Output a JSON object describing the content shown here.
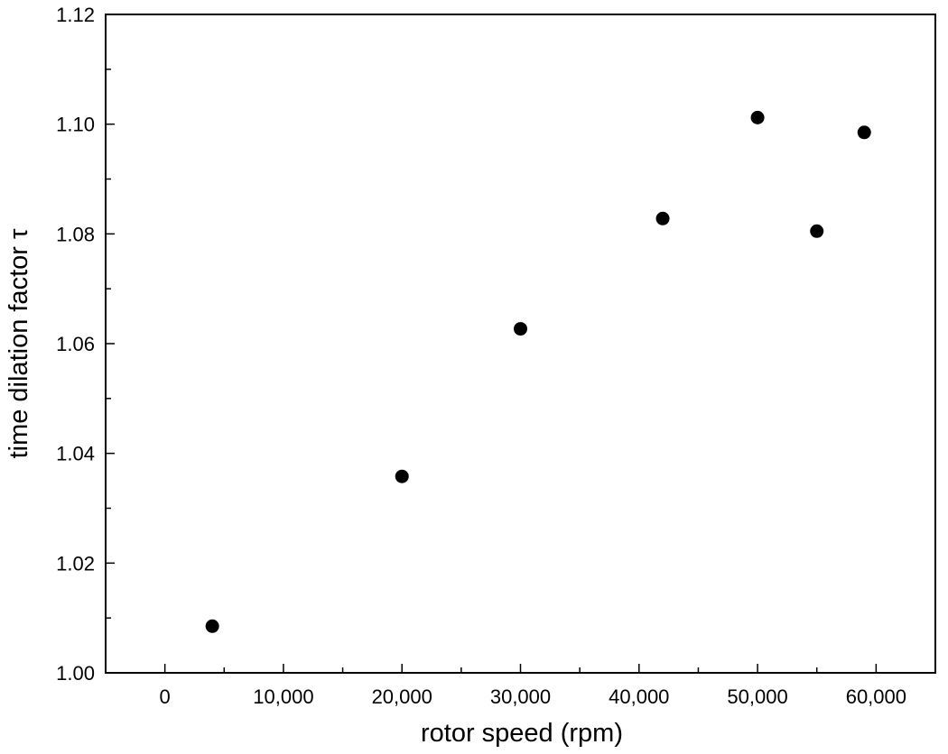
{
  "chart_data": {
    "type": "scatter",
    "title": "",
    "xlabel": "rotor speed (rpm)",
    "ylabel": "time dilation factor τ",
    "xlim": [
      -5000,
      65000
    ],
    "ylim": [
      1.0,
      1.12
    ],
    "grid": false,
    "marker_color": "#000000",
    "x_ticks": [
      {
        "value": 0,
        "label": "0"
      },
      {
        "value": 10000,
        "label": "10,000"
      },
      {
        "value": 20000,
        "label": "20,000"
      },
      {
        "value": 30000,
        "label": "30,000"
      },
      {
        "value": 40000,
        "label": "40,000"
      },
      {
        "value": 50000,
        "label": "50,000"
      },
      {
        "value": 60000,
        "label": "60,000"
      }
    ],
    "y_ticks": [
      {
        "value": 1.0,
        "label": "1.00"
      },
      {
        "value": 1.02,
        "label": "1.02"
      },
      {
        "value": 1.04,
        "label": "1.04"
      },
      {
        "value": 1.06,
        "label": "1.06"
      },
      {
        "value": 1.08,
        "label": "1.08"
      },
      {
        "value": 1.1,
        "label": "1.10"
      },
      {
        "value": 1.12,
        "label": "1.12"
      }
    ],
    "x_minor_step": 5000,
    "y_minor_step": 0.01,
    "points": [
      {
        "x": 4000,
        "y": 1.0085
      },
      {
        "x": 20000,
        "y": 1.0358
      },
      {
        "x": 30000,
        "y": 1.0627
      },
      {
        "x": 42000,
        "y": 1.0828
      },
      {
        "x": 50000,
        "y": 1.1012
      },
      {
        "x": 55000,
        "y": 1.0805
      },
      {
        "x": 59000,
        "y": 1.0985
      }
    ]
  }
}
